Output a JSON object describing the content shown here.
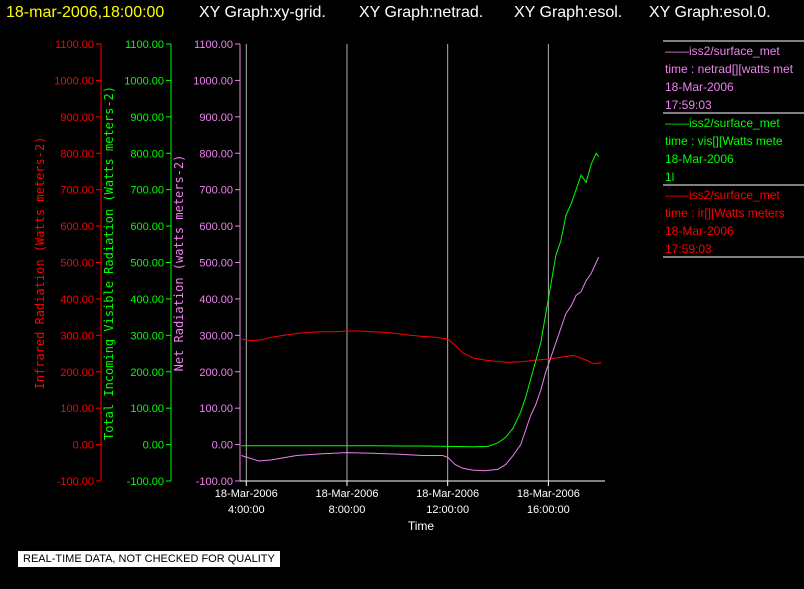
{
  "header": {
    "timestamp": "18-mar-2006,18:00:00",
    "graphs": [
      "XY Graph:xy-grid.",
      "XY Graph:netrad.",
      "XY Graph:esol.",
      "XY Graph:esol.0."
    ]
  },
  "legend": [
    {
      "source": "iss2/surface_met",
      "field": "time : netrad[][watts met",
      "date": "18-Mar-2006",
      "time": "17:59:03",
      "color": "#ee82ee"
    },
    {
      "source": "iss2/surface_met",
      "field": "time : vis[][Watts mete",
      "date": "18-Mar-2006",
      "time": "1l",
      "color": "#00ff00"
    },
    {
      "source": "iss2/surface_met",
      "field": "time : ir[][Watts meters",
      "date": "18-Mar-2006",
      "time": "17:59:03",
      "color": "#ff0000"
    }
  ],
  "footer_note": "REAL-TIME DATA, NOT CHECKED FOR QUALITY",
  "chart_data": {
    "type": "line",
    "xlabel": "Time",
    "x_ticks": [
      {
        "value": 4,
        "date": "18-Mar-2006",
        "time": "4:00:00"
      },
      {
        "value": 8,
        "date": "18-Mar-2006",
        "time": "8:00:00"
      },
      {
        "value": 12,
        "date": "18-Mar-2006",
        "time": "12:00:00"
      },
      {
        "value": 16,
        "date": "18-Mar-2006",
        "time": "16:00:00"
      }
    ],
    "xlim": [
      3.75,
      18.25
    ],
    "ylim": [
      -100,
      1100
    ],
    "y_ticks": [
      -100,
      0,
      100,
      200,
      300,
      400,
      500,
      600,
      700,
      800,
      900,
      1000,
      1100
    ],
    "y_tick_labels": [
      "-100.00",
      "0.00",
      "100.00",
      "200.00",
      "300.00",
      "400.00",
      "500.00",
      "600.00",
      "700.00",
      "800.00",
      "900.00",
      "1000.00",
      "1100.00"
    ],
    "axes": [
      {
        "label": "Infrared Radiation (Watts meters-2)",
        "color": "#ff0000"
      },
      {
        "label": "Total Incoming Visible Radiation (Watts meters-2)",
        "color": "#00ff00"
      },
      {
        "label": "Net Radiation (watts meters-2)",
        "color": "#ee82ee"
      }
    ],
    "grid": "vertical",
    "series": [
      {
        "name": "ir",
        "color": "#ff0000",
        "points": [
          [
            3.8,
            290
          ],
          [
            4.2,
            285
          ],
          [
            4.6,
            288
          ],
          [
            5.0,
            295
          ],
          [
            5.5,
            300
          ],
          [
            6.0,
            305
          ],
          [
            6.5,
            308
          ],
          [
            7.0,
            310
          ],
          [
            7.5,
            310
          ],
          [
            8.0,
            312
          ],
          [
            8.5,
            312
          ],
          [
            9.0,
            310
          ],
          [
            9.5,
            308
          ],
          [
            10.0,
            305
          ],
          [
            10.5,
            300
          ],
          [
            11.0,
            297
          ],
          [
            11.5,
            295
          ],
          [
            12.0,
            290
          ],
          [
            12.3,
            272
          ],
          [
            12.6,
            252
          ],
          [
            13.0,
            238
          ],
          [
            13.5,
            232
          ],
          [
            14.0,
            228
          ],
          [
            14.5,
            226
          ],
          [
            15.0,
            228
          ],
          [
            15.5,
            232
          ],
          [
            16.0,
            235
          ],
          [
            16.5,
            240
          ],
          [
            17.0,
            245
          ],
          [
            17.5,
            232
          ],
          [
            17.8,
            222
          ],
          [
            18.1,
            225
          ]
        ]
      },
      {
        "name": "vis",
        "color": "#00ff00",
        "points": [
          [
            3.8,
            -3
          ],
          [
            5.0,
            -3
          ],
          [
            6.0,
            -3
          ],
          [
            7.0,
            -3
          ],
          [
            8.0,
            -3
          ],
          [
            9.0,
            -3
          ],
          [
            10.0,
            -4
          ],
          [
            11.0,
            -4
          ],
          [
            12.0,
            -5
          ],
          [
            13.0,
            -6
          ],
          [
            13.6,
            -5
          ],
          [
            14.0,
            5
          ],
          [
            14.3,
            20
          ],
          [
            14.6,
            45
          ],
          [
            14.9,
            90
          ],
          [
            15.1,
            130
          ],
          [
            15.3,
            180
          ],
          [
            15.5,
            230
          ],
          [
            15.7,
            280
          ],
          [
            15.9,
            360
          ],
          [
            16.1,
            440
          ],
          [
            16.3,
            520
          ],
          [
            16.5,
            560
          ],
          [
            16.7,
            630
          ],
          [
            16.9,
            660
          ],
          [
            17.1,
            700
          ],
          [
            17.3,
            740
          ],
          [
            17.5,
            720
          ],
          [
            17.7,
            770
          ],
          [
            17.9,
            800
          ],
          [
            18.0,
            790
          ]
        ]
      },
      {
        "name": "netrad",
        "color": "#ee82ee",
        "points": [
          [
            3.8,
            -30
          ],
          [
            4.5,
            -45
          ],
          [
            5.0,
            -42
          ],
          [
            6.0,
            -30
          ],
          [
            7.0,
            -25
          ],
          [
            8.0,
            -22
          ],
          [
            9.0,
            -24
          ],
          [
            10.0,
            -26
          ],
          [
            11.0,
            -30
          ],
          [
            11.8,
            -30
          ],
          [
            12.0,
            -35
          ],
          [
            12.3,
            -55
          ],
          [
            12.6,
            -65
          ],
          [
            13.0,
            -70
          ],
          [
            13.5,
            -72
          ],
          [
            14.0,
            -68
          ],
          [
            14.3,
            -55
          ],
          [
            14.6,
            -30
          ],
          [
            14.9,
            0
          ],
          [
            15.1,
            40
          ],
          [
            15.3,
            80
          ],
          [
            15.5,
            110
          ],
          [
            15.7,
            150
          ],
          [
            15.9,
            200
          ],
          [
            16.1,
            240
          ],
          [
            16.3,
            280
          ],
          [
            16.5,
            320
          ],
          [
            16.7,
            360
          ],
          [
            16.9,
            380
          ],
          [
            17.1,
            410
          ],
          [
            17.3,
            420
          ],
          [
            17.5,
            450
          ],
          [
            17.7,
            470
          ],
          [
            17.9,
            500
          ],
          [
            18.0,
            515
          ]
        ]
      }
    ]
  }
}
